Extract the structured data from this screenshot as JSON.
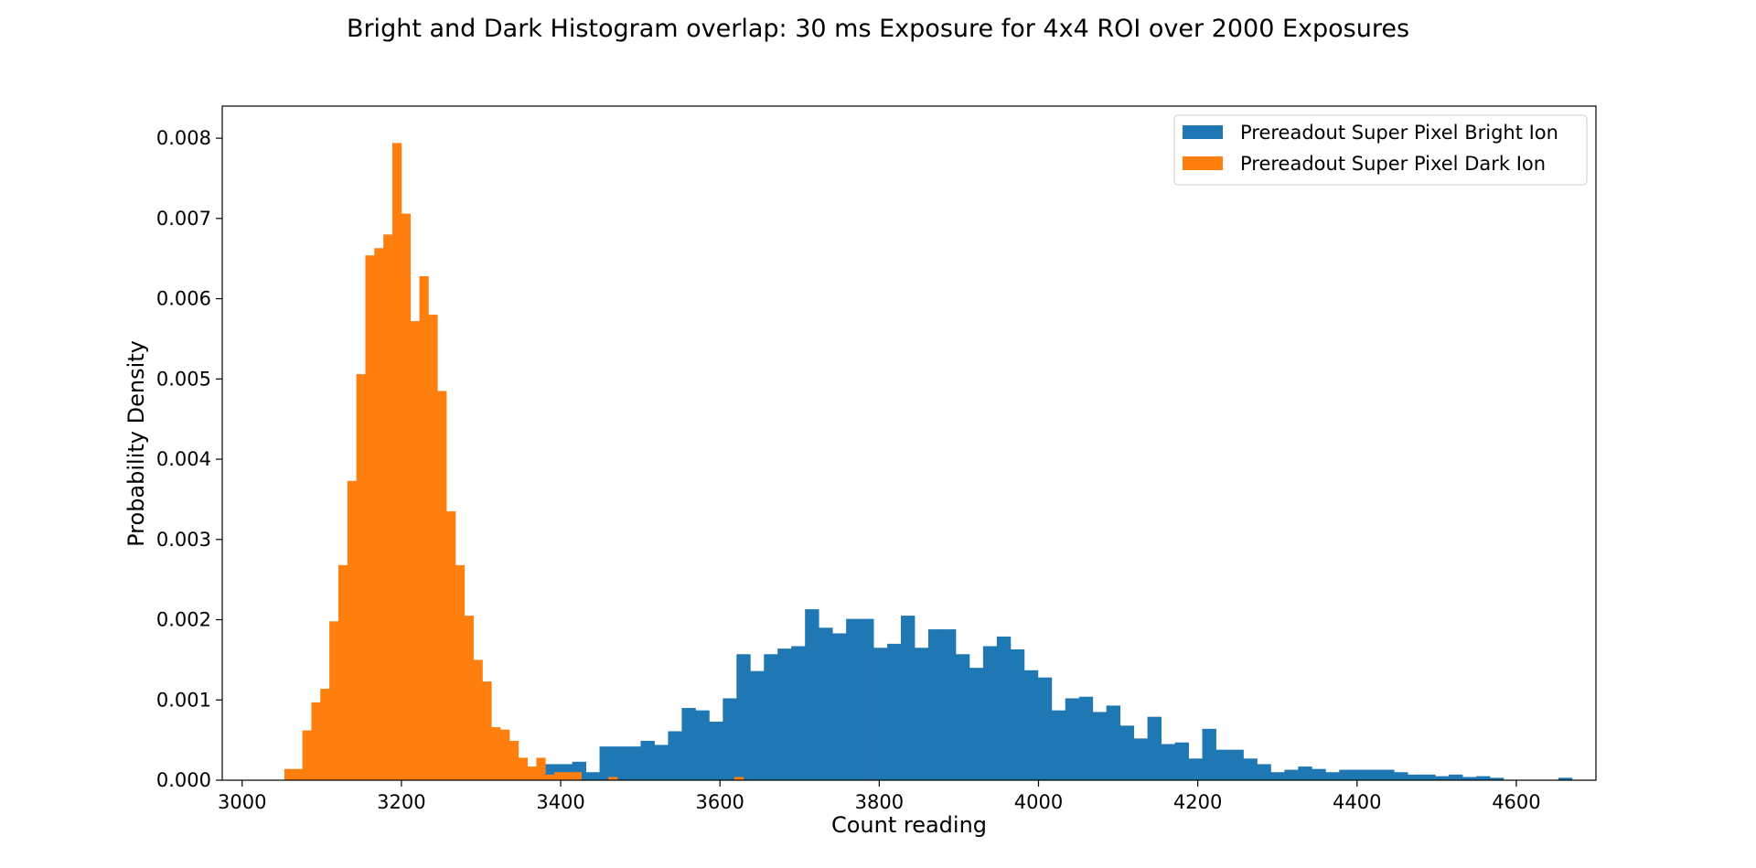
{
  "chart_data": {
    "type": "bar",
    "title": "Bright and Dark Histogram overlap: 30 ms Exposure for 4x4 ROI over 2000 Exposures",
    "xlabel": "Count reading",
    "ylabel": "Probability Density",
    "xlim": [
      2975,
      4700
    ],
    "ylim": [
      0,
      0.0084
    ],
    "xticks": [
      3000,
      3200,
      3400,
      3600,
      3800,
      4000,
      4200,
      4400,
      4600
    ],
    "xtick_labels": [
      "3000",
      "3200",
      "3400",
      "3600",
      "3800",
      "4000",
      "4200",
      "4400",
      "4600"
    ],
    "yticks": [
      0,
      0.001,
      0.002,
      0.003,
      0.004,
      0.005,
      0.006,
      0.007,
      0.008
    ],
    "ytick_labels": [
      "0.000",
      "0.001",
      "0.002",
      "0.003",
      "0.004",
      "0.005",
      "0.006",
      "0.007",
      "0.008"
    ],
    "legend_position": "top-right",
    "grid": false,
    "series": [
      {
        "name": "Prereadout Super Pixel Bright Ion",
        "color": "#1f77b4",
        "bin_start": 3380,
        "bin_width": 17.2,
        "values": [
          0.0002,
          0.0002,
          0.00023,
          0.0001,
          0.00042,
          0.00042,
          0.00042,
          0.00049,
          0.00044,
          0.00061,
          0.0009,
          0.00087,
          0.00073,
          0.00102,
          0.00157,
          0.00136,
          0.00157,
          0.00164,
          0.00167,
          0.00213,
          0.0019,
          0.00183,
          0.00201,
          0.00201,
          0.00165,
          0.0017,
          0.00205,
          0.00165,
          0.00188,
          0.00188,
          0.00157,
          0.0014,
          0.00167,
          0.00179,
          0.00163,
          0.00137,
          0.00128,
          0.00087,
          0.00102,
          0.00104,
          0.00085,
          0.00093,
          0.00068,
          0.00052,
          0.00079,
          0.00045,
          0.00047,
          0.00027,
          0.00064,
          0.00038,
          0.00038,
          0.00027,
          0.0002,
          0.0001,
          0.00013,
          0.00017,
          0.00014,
          0.0001,
          0.00013,
          0.00013,
          0.00013,
          0.00013,
          0.0001,
          7e-05,
          7e-05,
          5e-05,
          7e-05,
          4e-05,
          5e-05,
          3e-05,
          0,
          0,
          0,
          0,
          3e-05
        ]
      },
      {
        "name": "Prereadout Super Pixel Dark Ion",
        "color": "#ff7f0e",
        "bin_start": 3053,
        "bin_width": 11.3,
        "values": [
          0.00014,
          0.00014,
          0.00062,
          0.00097,
          0.00114,
          0.00198,
          0.00268,
          0.00373,
          0.00506,
          0.00654,
          0.00663,
          0.0068,
          0.00794,
          0.00706,
          0.00572,
          0.00628,
          0.0058,
          0.00485,
          0.00335,
          0.00268,
          0.00205,
          0.0015,
          0.00123,
          0.00066,
          0.00063,
          0.00049,
          0.00028,
          0.00017,
          0.00028,
          7e-05,
          0.0001,
          0.0001,
          0.0001,
          0,
          0,
          0,
          4e-05,
          0,
          0,
          0,
          0,
          0,
          0,
          0,
          0,
          0,
          0,
          0,
          0,
          0,
          4e-05
        ]
      }
    ]
  }
}
